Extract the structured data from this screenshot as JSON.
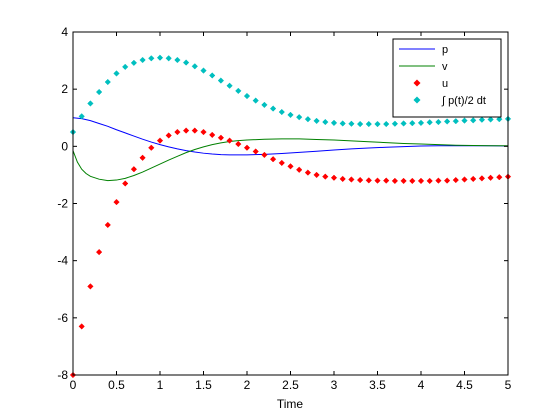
{
  "chart_data": {
    "type": "line",
    "xlabel": "Time",
    "ylabel": "",
    "title": "",
    "xlim": [
      0,
      5
    ],
    "ylim": [
      -8,
      4
    ],
    "xticks": [
      "0",
      "0.5",
      "1",
      "1.5",
      "2",
      "2.5",
      "3",
      "3.5",
      "4",
      "4.5",
      "5"
    ],
    "yticks": [
      "-8",
      "-6",
      "-4",
      "-2",
      "0",
      "2",
      "4"
    ],
    "legend_position": "top-right",
    "grid": false,
    "series": [
      {
        "name": "p",
        "style": "line",
        "color": "#0000ff",
        "x": [
          0,
          0.1,
          0.2,
          0.3,
          0.4,
          0.5,
          0.6,
          0.7,
          0.8,
          0.9,
          1.0,
          1.1,
          1.2,
          1.3,
          1.4,
          1.5,
          1.6,
          1.7,
          1.8,
          1.9,
          2.0,
          2.2,
          2.4,
          2.6,
          2.8,
          3.0,
          3.2,
          3.4,
          3.6,
          3.8,
          4.0,
          4.2,
          4.4,
          4.6,
          4.8,
          5.0
        ],
        "y": [
          1.0,
          0.97,
          0.9,
          0.8,
          0.7,
          0.58,
          0.47,
          0.36,
          0.25,
          0.15,
          0.06,
          -0.02,
          -0.09,
          -0.15,
          -0.2,
          -0.24,
          -0.27,
          -0.29,
          -0.3,
          -0.3,
          -0.3,
          -0.28,
          -0.25,
          -0.21,
          -0.17,
          -0.13,
          -0.09,
          -0.06,
          -0.03,
          -0.01,
          0.01,
          0.02,
          0.02,
          0.02,
          0.02,
          0.01
        ]
      },
      {
        "name": "v",
        "style": "line",
        "color": "#008000",
        "x": [
          0,
          0.05,
          0.1,
          0.15,
          0.2,
          0.3,
          0.4,
          0.5,
          0.6,
          0.7,
          0.8,
          0.9,
          1.0,
          1.1,
          1.2,
          1.3,
          1.4,
          1.5,
          1.6,
          1.7,
          1.8,
          1.9,
          2.0,
          2.2,
          2.4,
          2.6,
          2.8,
          3.0,
          3.2,
          3.4,
          3.6,
          3.8,
          4.0,
          4.2,
          4.4,
          4.6,
          4.8,
          5.0
        ],
        "y": [
          -0.15,
          -0.55,
          -0.8,
          -0.95,
          -1.05,
          -1.15,
          -1.2,
          -1.18,
          -1.12,
          -1.02,
          -0.9,
          -0.76,
          -0.62,
          -0.48,
          -0.35,
          -0.22,
          -0.11,
          -0.02,
          0.06,
          0.12,
          0.17,
          0.2,
          0.22,
          0.25,
          0.26,
          0.26,
          0.24,
          0.22,
          0.19,
          0.16,
          0.13,
          0.1,
          0.08,
          0.06,
          0.04,
          0.03,
          0.02,
          0.02
        ]
      },
      {
        "name": "u",
        "style": "dots",
        "color": "#ff0000",
        "x": [
          0,
          0.1,
          0.2,
          0.3,
          0.4,
          0.5,
          0.6,
          0.7,
          0.8,
          0.9,
          1.0,
          1.1,
          1.2,
          1.3,
          1.4,
          1.5,
          1.6,
          1.7,
          1.8,
          1.9,
          2.0,
          2.1,
          2.2,
          2.3,
          2.4,
          2.5,
          2.6,
          2.7,
          2.8,
          2.9,
          3.0,
          3.1,
          3.2,
          3.3,
          3.4,
          3.5,
          3.6,
          3.7,
          3.8,
          3.9,
          4.0,
          4.1,
          4.2,
          4.3,
          4.4,
          4.5,
          4.6,
          4.7,
          4.8,
          4.9,
          5.0
        ],
        "y": [
          -8.0,
          -6.3,
          -4.9,
          -3.7,
          -2.75,
          -1.95,
          -1.3,
          -0.8,
          -0.4,
          -0.05,
          0.2,
          0.38,
          0.5,
          0.55,
          0.55,
          0.5,
          0.4,
          0.3,
          0.2,
          0.08,
          -0.05,
          -0.18,
          -0.3,
          -0.45,
          -0.58,
          -0.7,
          -0.82,
          -0.92,
          -1.0,
          -1.06,
          -1.1,
          -1.14,
          -1.16,
          -1.18,
          -1.19,
          -1.2,
          -1.2,
          -1.21,
          -1.21,
          -1.21,
          -1.21,
          -1.21,
          -1.2,
          -1.2,
          -1.18,
          -1.16,
          -1.14,
          -1.12,
          -1.1,
          -1.08,
          -1.06
        ]
      },
      {
        "name": "∫ p(t)/2 dt",
        "style": "dots",
        "color": "#00bfbf",
        "x": [
          0,
          0.1,
          0.2,
          0.3,
          0.4,
          0.5,
          0.6,
          0.7,
          0.8,
          0.9,
          1.0,
          1.1,
          1.2,
          1.3,
          1.4,
          1.5,
          1.6,
          1.7,
          1.8,
          1.9,
          2.0,
          2.1,
          2.2,
          2.3,
          2.4,
          2.5,
          2.6,
          2.7,
          2.8,
          2.9,
          3.0,
          3.1,
          3.2,
          3.3,
          3.4,
          3.5,
          3.6,
          3.7,
          3.8,
          3.9,
          4.0,
          4.1,
          4.2,
          4.3,
          4.4,
          4.5,
          4.6,
          4.7,
          4.8,
          4.9,
          5.0
        ],
        "y": [
          0.5,
          1.05,
          1.5,
          1.9,
          2.25,
          2.55,
          2.78,
          2.92,
          3.02,
          3.08,
          3.1,
          3.08,
          3.02,
          2.93,
          2.8,
          2.65,
          2.48,
          2.3,
          2.12,
          1.94,
          1.76,
          1.6,
          1.45,
          1.32,
          1.2,
          1.1,
          1.02,
          0.95,
          0.89,
          0.85,
          0.82,
          0.8,
          0.79,
          0.78,
          0.78,
          0.78,
          0.78,
          0.79,
          0.8,
          0.81,
          0.82,
          0.84,
          0.85,
          0.87,
          0.88,
          0.9,
          0.91,
          0.93,
          0.94,
          0.95,
          0.96
        ]
      }
    ]
  }
}
